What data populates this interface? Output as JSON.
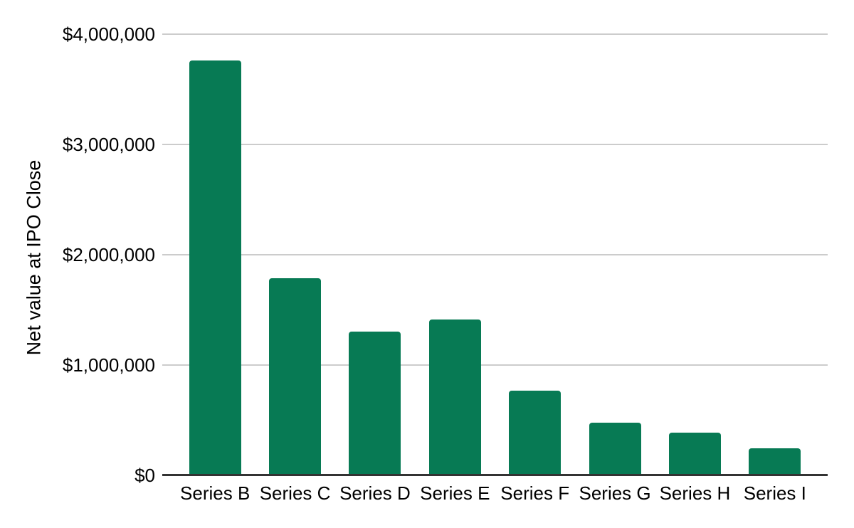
{
  "chart_data": {
    "type": "bar",
    "title": "",
    "xlabel": "",
    "ylabel": "Net value at IPO Close",
    "categories": [
      "Series B",
      "Series C",
      "Series D",
      "Series E",
      "Series F",
      "Series G",
      "Series H",
      "Series I"
    ],
    "values": [
      3760000,
      1790000,
      1300000,
      1410000,
      770000,
      480000,
      390000,
      245000
    ],
    "ylim": [
      0,
      4000000
    ],
    "yticks": [
      0,
      1000000,
      2000000,
      3000000,
      4000000
    ],
    "ytick_labels": [
      "$0",
      "$1,000,000",
      "$2,000,000",
      "$3,000,000",
      "$4,000,000"
    ],
    "grid": true,
    "legend": false,
    "bar_color": "#077a54",
    "gridline_color": "#cccccc",
    "axis_line_color": "#333333",
    "text_color": "#000000",
    "background_color": "#ffffff"
  }
}
